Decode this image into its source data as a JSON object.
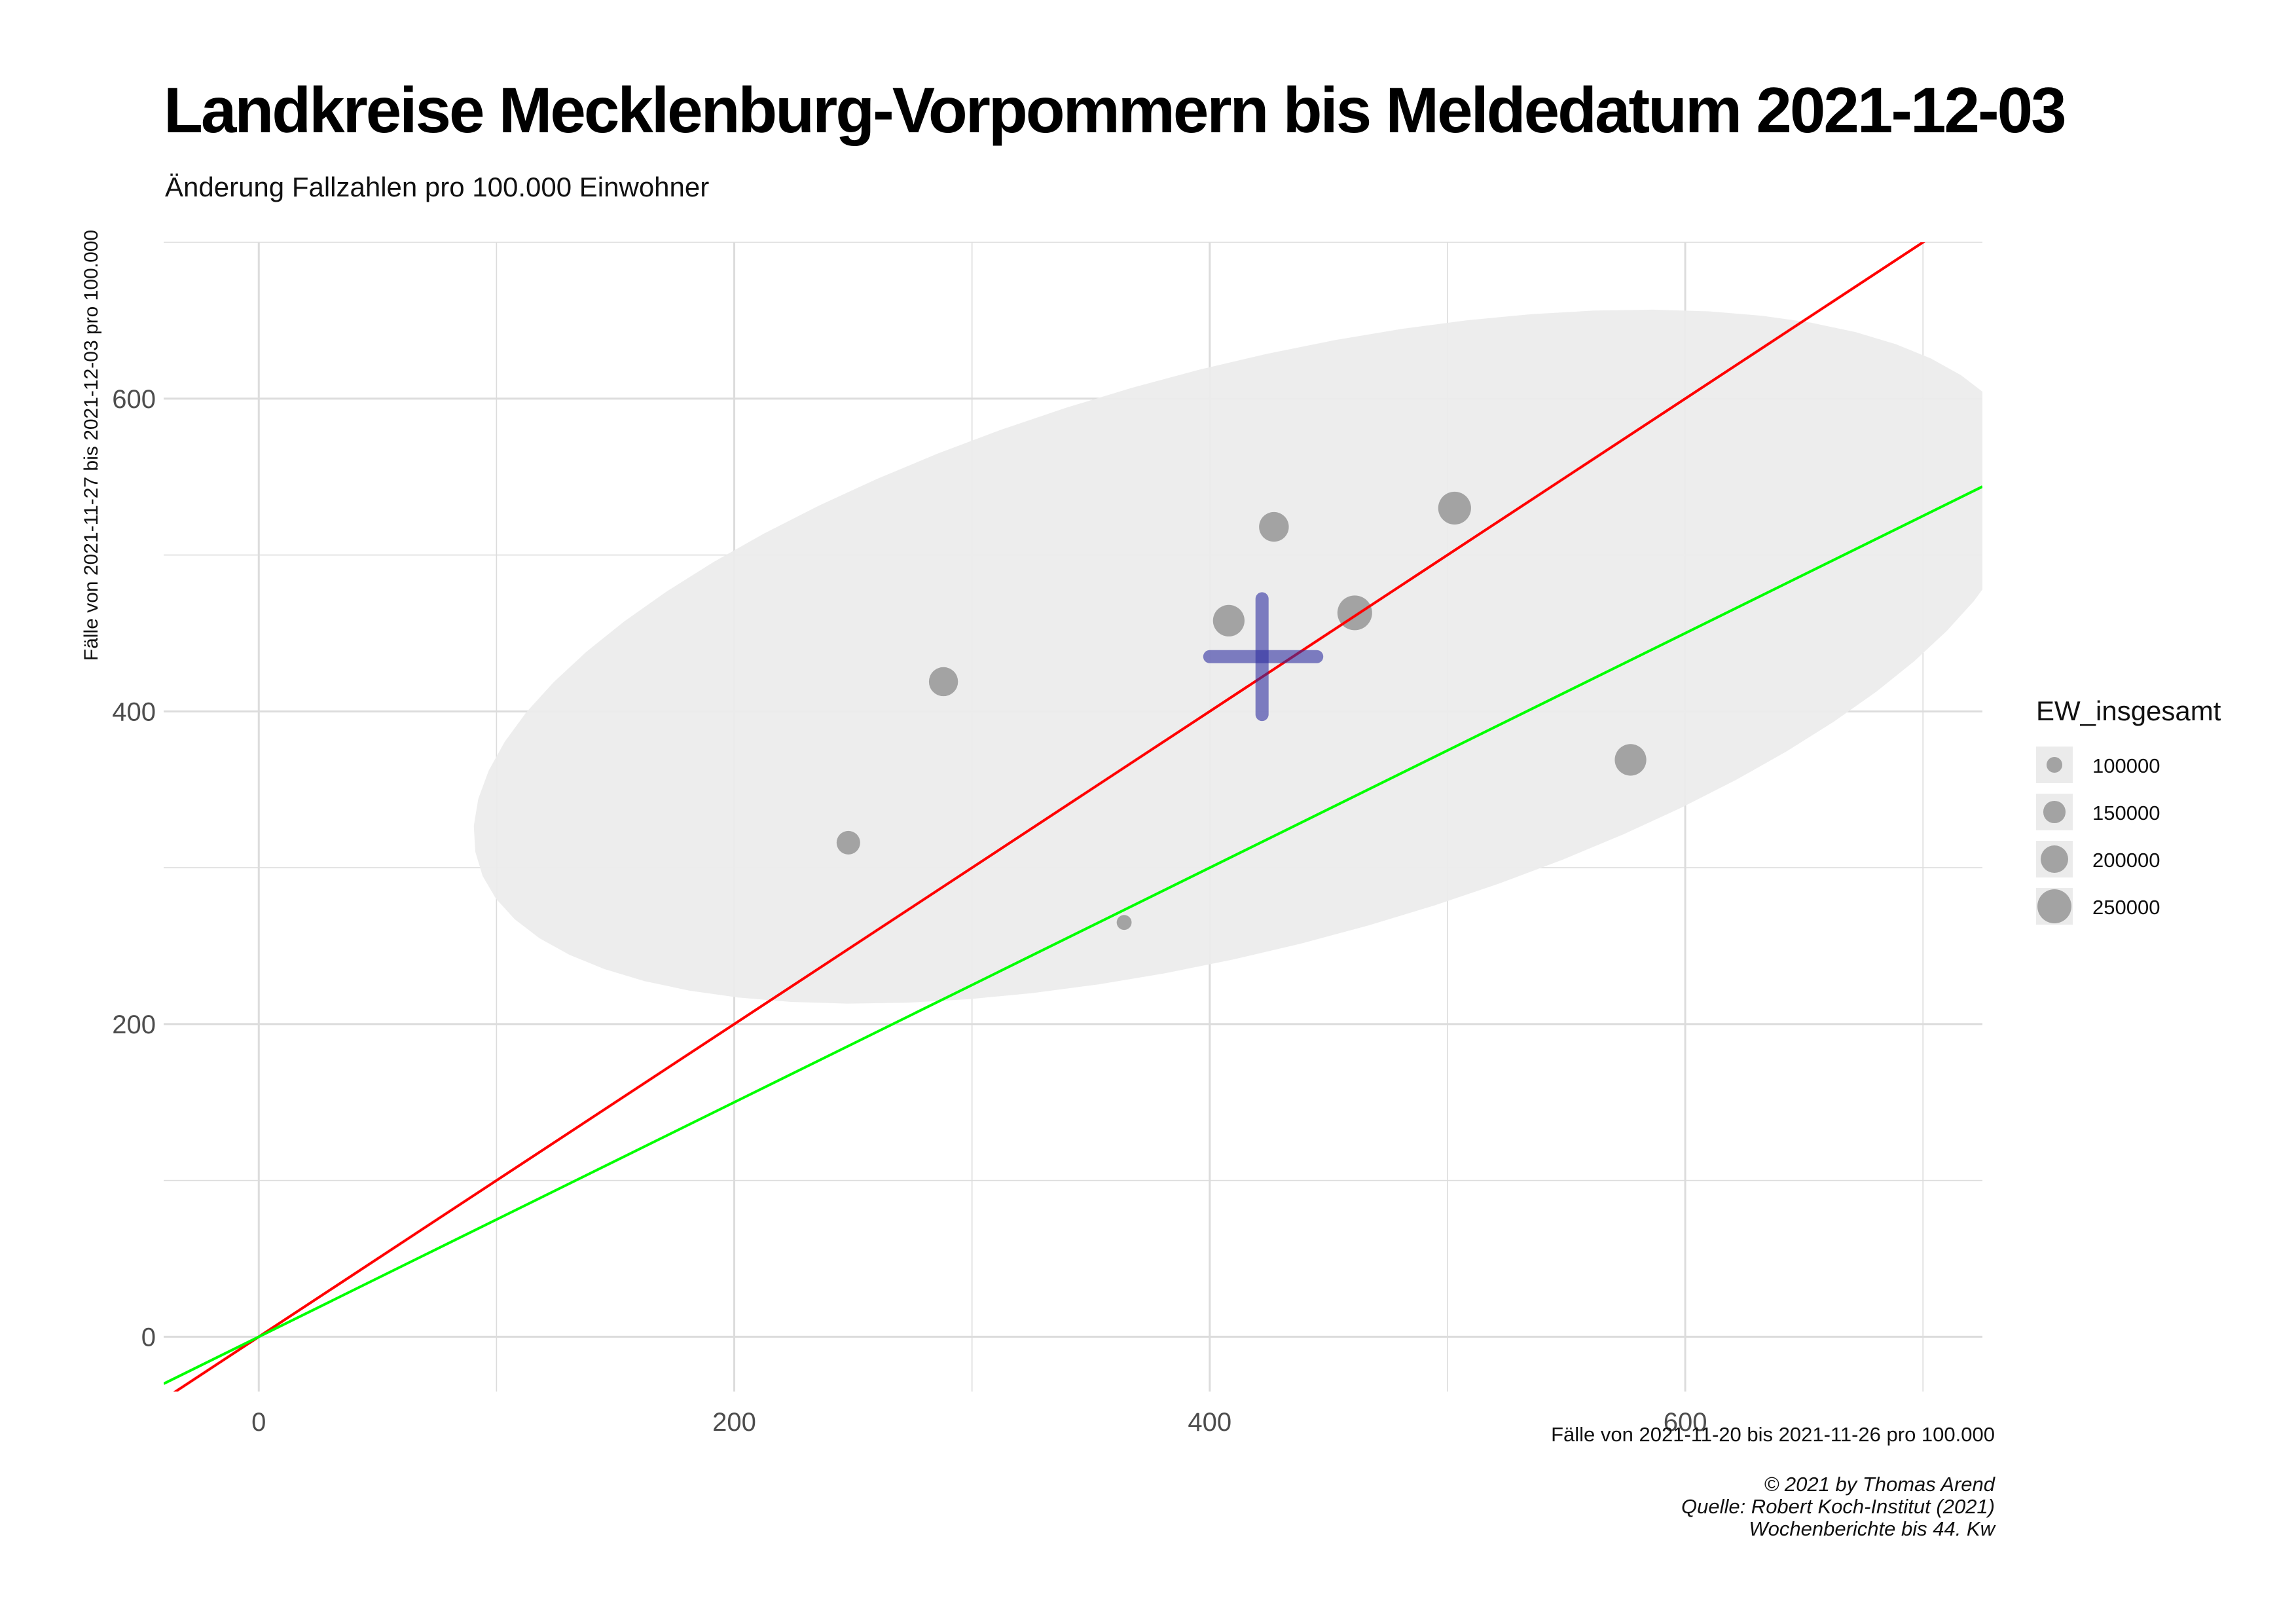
{
  "title": "Landkreise Mecklenburg-Vorpommern bis Meldedatum 2021-12-03",
  "subtitle": "Änderung Fallzahlen pro 100.000 Einwohner",
  "caption": {
    "line1": "© 2021 by Thomas Arend",
    "line2": "Quelle: Robert Koch-Institut (2021)",
    "line3": "Wochenberichte bis 44. Kw"
  },
  "colors": {
    "panel_background": "#ffffff",
    "grid": "#dcdcdc",
    "ellipse_fill": "#ebebeb",
    "point": "#a3a3a3",
    "red_line": "#ff0000",
    "green_line": "#00ff00",
    "mean_cross": "#2f2fa0"
  },
  "chart_data": {
    "type": "scatter",
    "title": "Landkreise Mecklenburg-Vorpommern bis Meldedatum 2021-12-03",
    "subtitle": "Änderung Fallzahlen pro 100.000 Einwohner",
    "xlabel": "Fälle von 2021-11-20 bis 2021-11-26 pro 100.000",
    "ylabel": "Fälle von 2021-11-27 bis 2021-12-03 pro 100.000",
    "xlim": [
      -40,
      725
    ],
    "ylim": [
      -35,
      700
    ],
    "x_ticks": [
      0,
      200,
      400,
      600
    ],
    "y_ticks": [
      0,
      200,
      400,
      600
    ],
    "grid": true,
    "size_variable": "EW_insgesamt",
    "legend": {
      "title": "EW_insgesamt",
      "position": "right",
      "entries": [
        {
          "label": "100000",
          "value": 100000
        },
        {
          "label": "150000",
          "value": 150000
        },
        {
          "label": "200000",
          "value": 200000
        },
        {
          "label": "250000",
          "value": 250000
        }
      ]
    },
    "points": [
      {
        "x": 248,
        "y": 316,
        "size": 165000
      },
      {
        "x": 288,
        "y": 419,
        "size": 210000
      },
      {
        "x": 364,
        "y": 265,
        "size": 95000
      },
      {
        "x": 408,
        "y": 458,
        "size": 230000
      },
      {
        "x": 427,
        "y": 518,
        "size": 215000
      },
      {
        "x": 461,
        "y": 463,
        "size": 255000
      },
      {
        "x": 503,
        "y": 530,
        "size": 240000
      },
      {
        "x": 577,
        "y": 369,
        "size": 230000
      }
    ],
    "reference_lines": [
      {
        "slope": 1.0,
        "intercept": 0,
        "color": "#ff0000"
      },
      {
        "slope": 0.75,
        "intercept": 0,
        "color": "#00ff00"
      }
    ],
    "mean_cross": {
      "x": 422,
      "y": 435,
      "x_interval": [
        400,
        445
      ],
      "y_interval": [
        398,
        472
      ]
    },
    "confidence_ellipse": {
      "center": [
        417,
        435
      ],
      "semi_major": 353,
      "semi_minor": 177,
      "angle_deg": 26
    }
  }
}
